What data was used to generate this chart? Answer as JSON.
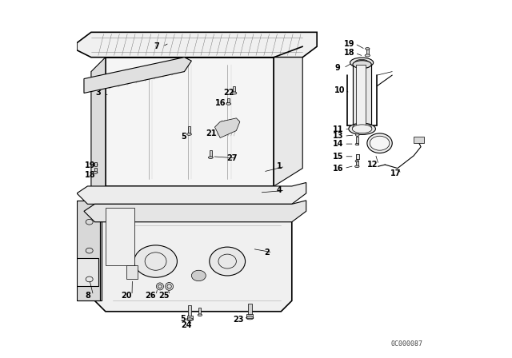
{
  "background_color": "#ffffff",
  "line_color": "#000000",
  "fig_width": 6.4,
  "fig_height": 4.48,
  "dpi": 100,
  "watermark": "0C000087",
  "font_size_labels": 7,
  "font_size_watermark": 6
}
